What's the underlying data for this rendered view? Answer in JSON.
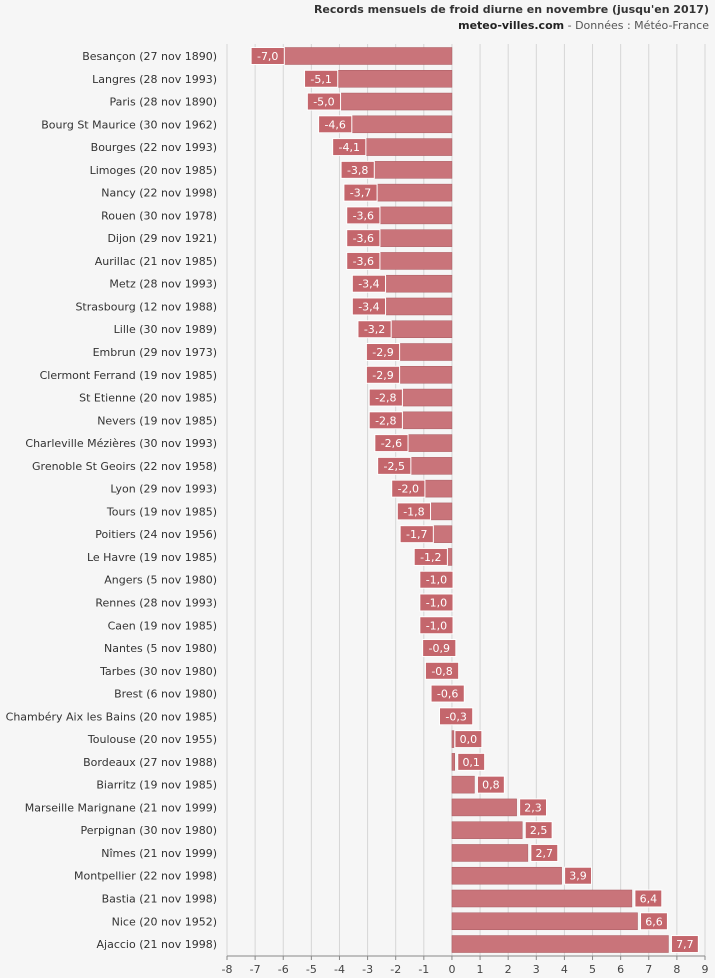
{
  "chart_data": {
    "type": "bar",
    "orientation": "horizontal",
    "title": "Records mensuels de froid diurne en novembre (jusqu'en 2017)",
    "subtitle_site": "meteo-villes.com",
    "subtitle_rest": " - Données : Météo-France",
    "xlim": [
      -8,
      9
    ],
    "xticks": [
      -8,
      -7,
      -6,
      -5,
      -4,
      -3,
      -2,
      -1,
      0,
      1,
      2,
      3,
      4,
      5,
      6,
      7,
      8,
      9
    ],
    "categories": [
      "Besançon (27 nov 1890)",
      "Langres (28 nov 1993)",
      "Paris (28 nov 1890)",
      "Bourg St Maurice (30 nov 1962)",
      "Bourges (22 nov 1993)",
      "Limoges (20 nov 1985)",
      "Nancy (22 nov 1998)",
      "Rouen (30 nov 1978)",
      "Dijon (29 nov 1921)",
      "Aurillac (21 nov 1985)",
      "Metz (28 nov 1993)",
      "Strasbourg (12 nov 1988)",
      "Lille (30 nov 1989)",
      "Embrun (29 nov 1973)",
      "Clermont Ferrand (19 nov 1985)",
      "St Etienne (20 nov 1985)",
      "Nevers (19 nov 1985)",
      "Charleville Mézières (30 nov 1993)",
      "Grenoble St Geoirs (22 nov 1958)",
      "Lyon (29 nov 1993)",
      "Tours (19 nov 1985)",
      "Poitiers (24 nov 1956)",
      "Le Havre (19 nov 1985)",
      "Angers (5 nov 1980)",
      "Rennes (28 nov 1993)",
      "Caen (19 nov 1985)",
      "Nantes (5 nov 1980)",
      "Tarbes (30 nov 1980)",
      "Brest (6 nov 1980)",
      "Chambéry Aix les Bains (20 nov 1985)",
      "Toulouse (20 nov 1955)",
      "Bordeaux (27 nov 1988)",
      "Biarritz (19 nov 1985)",
      "Marseille Marignane (21 nov 1999)",
      "Perpignan (30 nov 1980)",
      "Nîmes (21 nov 1999)",
      "Montpellier (22 nov 1998)",
      "Bastia (21 nov 1998)",
      "Nice (20 nov 1952)",
      "Ajaccio (21 nov 1998)"
    ],
    "values": [
      -7.0,
      -5.1,
      -5.0,
      -4.6,
      -4.1,
      -3.8,
      -3.7,
      -3.6,
      -3.6,
      -3.6,
      -3.4,
      -3.4,
      -3.2,
      -2.9,
      -2.9,
      -2.8,
      -2.8,
      -2.6,
      -2.5,
      -2.0,
      -1.8,
      -1.7,
      -1.2,
      -1.0,
      -1.0,
      -1.0,
      -0.9,
      -0.8,
      -0.6,
      -0.3,
      0.0,
      0.1,
      0.8,
      2.3,
      2.5,
      2.7,
      3.9,
      6.4,
      6.6,
      7.7
    ],
    "value_labels": [
      "-7,0",
      "-5,1",
      "-5,0",
      "-4,6",
      "-4,1",
      "-3,8",
      "-3,7",
      "-3,6",
      "-3,6",
      "-3,6",
      "-3,4",
      "-3,4",
      "-3,2",
      "-2,9",
      "-2,9",
      "-2,8",
      "-2,8",
      "-2,6",
      "-2,5",
      "-2,0",
      "-1,8",
      "-1,7",
      "-1,2",
      "-1,0",
      "-1,0",
      "-1,0",
      "-0,9",
      "-0,8",
      "-0,6",
      "-0,3",
      "0,0",
      "0,1",
      "0,8",
      "2,3",
      "2,5",
      "2,7",
      "3,9",
      "6,4",
      "6,6",
      "7,7"
    ],
    "colors": {
      "bar": "#c9747a",
      "bar_edge": "#a85a60",
      "label_box": "#c4666c",
      "grid": "#d6d6d6",
      "axis": "#888888",
      "background": "#f6f6f6"
    },
    "grid": true
  }
}
